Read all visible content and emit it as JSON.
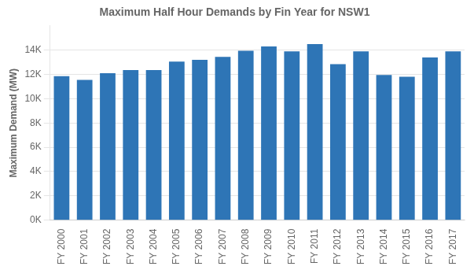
{
  "chart_data": {
    "type": "bar",
    "title": "Maximum Half Hour Demands by Fin Year for NSW1",
    "ylabel": "Maximum Demand (MW)",
    "categories": [
      "FY 2000",
      "FY 2001",
      "FY 2002",
      "FY 2003",
      "FY 2004",
      "FY 2005",
      "FY 2006",
      "FY 2007",
      "FY 2008",
      "FY 2009",
      "FY 2010",
      "FY 2011",
      "FY 2012",
      "FY 2013",
      "FY 2014",
      "FY 2015",
      "FY 2016",
      "FY 2017"
    ],
    "values": [
      11850,
      11550,
      12100,
      12350,
      12350,
      13050,
      13200,
      13450,
      13950,
      14300,
      13900,
      14500,
      12850,
      13900,
      11950,
      11800,
      13400,
      13900
    ],
    "color": "#2E75B6",
    "ylim": [
      0,
      16000
    ],
    "yticks": [
      {
        "value": 0,
        "label": "0K"
      },
      {
        "value": 2000,
        "label": "2K"
      },
      {
        "value": 4000,
        "label": "4K"
      },
      {
        "value": 6000,
        "label": "6K"
      },
      {
        "value": 8000,
        "label": "8K"
      },
      {
        "value": 10000,
        "label": "10K"
      },
      {
        "value": 12000,
        "label": "12K"
      },
      {
        "value": 14000,
        "label": "14K"
      }
    ],
    "grid": true
  }
}
